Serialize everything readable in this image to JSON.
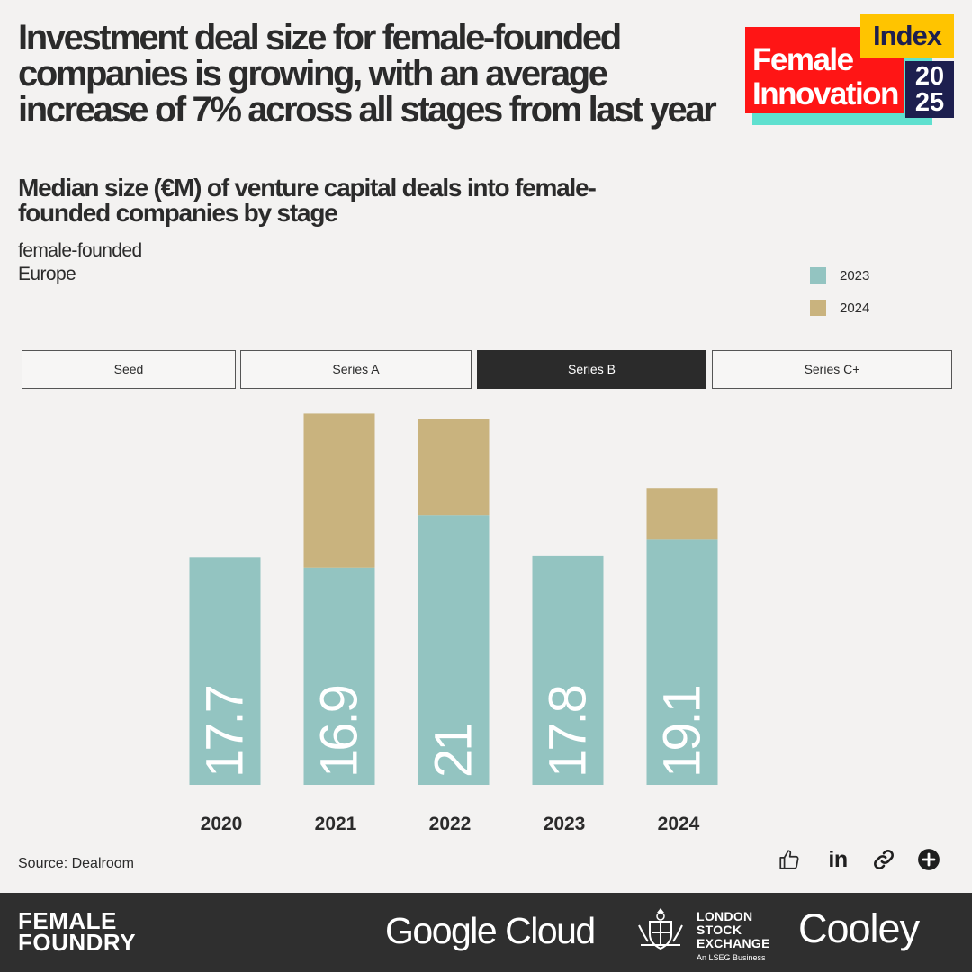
{
  "header": {
    "headline": "Investment deal size for female-founded companies is growing, with an average increase of 7% across all stages from last year",
    "subtitle": "Median size (€M) of venture capital deals into female-founded companies by stage",
    "filter_1": "female-founded",
    "filter_2": "Europe"
  },
  "logo": {
    "line1": "Female",
    "line2": "Innovation",
    "badge": "Index",
    "year_top": "20",
    "year_bottom": "25",
    "colors": {
      "red": "#ff1515",
      "yellow": "#ffc400",
      "navy": "#1d1f4f",
      "teal": "#5fe0cf"
    }
  },
  "legend": [
    {
      "label": "2023",
      "color": "#93c4c1"
    },
    {
      "label": "2024",
      "color": "#c9b37e"
    }
  ],
  "tabs": [
    {
      "label": "Seed",
      "active": false
    },
    {
      "label": "Series A",
      "active": false
    },
    {
      "label": "Series B",
      "active": true
    },
    {
      "label": "Series C+",
      "active": false
    }
  ],
  "chart_data": {
    "type": "bar",
    "stacked": true,
    "categories": [
      "2020",
      "2021",
      "2022",
      "2023",
      "2024"
    ],
    "series": [
      {
        "name": "2023",
        "values": [
          17.7,
          16.9,
          21,
          17.8,
          19.1
        ],
        "labels": [
          "17.7",
          "16.9",
          "21",
          "17.8",
          "19.1"
        ],
        "color": "#93c4c1"
      },
      {
        "name": "2024",
        "values": [
          0,
          12,
          7.5,
          0,
          4
        ],
        "color": "#c9b37e"
      }
    ],
    "ylim": [
      0,
      29
    ],
    "grid": false,
    "legend_position": "top-right"
  },
  "source": "Source: Dealroom",
  "actions": [
    {
      "icon": "thumbs-up-icon"
    },
    {
      "icon": "linkedin-icon",
      "text": "in"
    },
    {
      "icon": "link-icon"
    },
    {
      "icon": "plus-circle-icon"
    }
  ],
  "footer": {
    "female_foundry_line1": "FEMALE",
    "female_foundry_line2": "FOUNDRY",
    "google_cloud": "Google Cloud",
    "lse_line1": "LONDON",
    "lse_line2": "STOCK",
    "lse_line3": "EXCHANGE",
    "lse_tagline": "An LSEG Business",
    "cooley": "Cooley"
  }
}
